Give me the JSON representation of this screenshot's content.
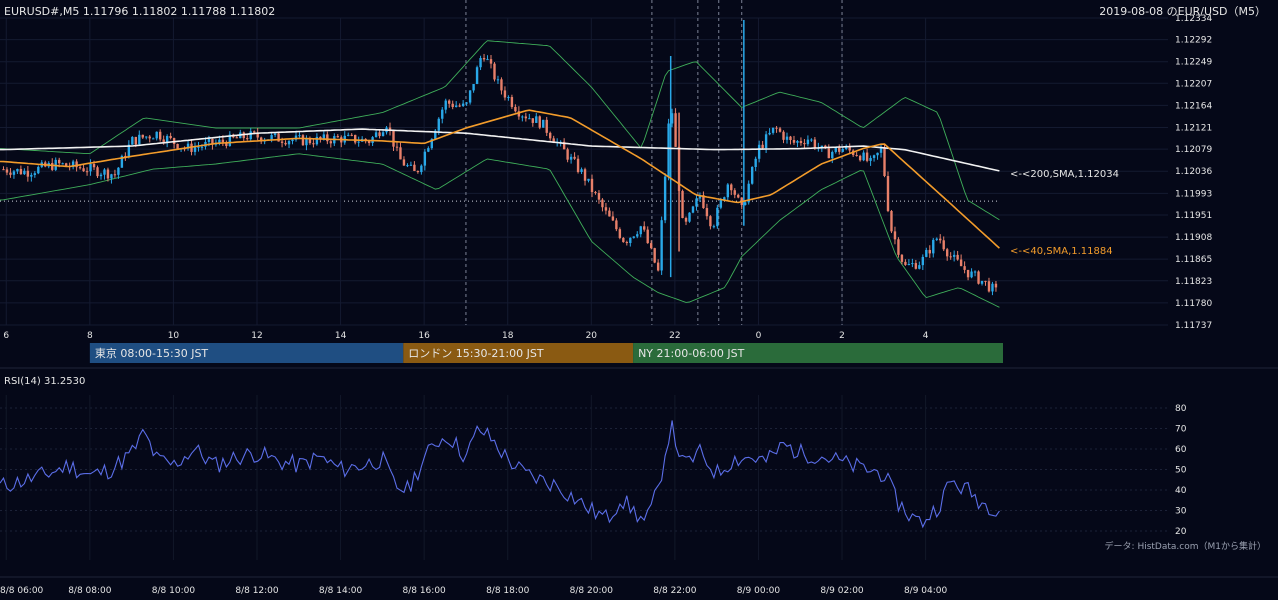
{
  "header": {
    "symbol_info": "EURUSD#,M5 1.11796 1.11802 1.11788 1.11802",
    "title": "2019-08-08 のEUR/USD（M5）"
  },
  "indicators": {
    "sma200": {
      "label": "<-<200,SMA,1.12034",
      "color": "#f2f2f2"
    },
    "sma40": {
      "label": "<-<40,SMA,1.11884",
      "color": "#f39c2b"
    },
    "bollinger": {
      "color": "#3fae5a"
    }
  },
  "sessions": [
    {
      "label": "東京 08:00-15:30 JST",
      "color": "#1f4e82"
    },
    {
      "label": "ロンドン 15:30-21:00 JST",
      "color": "#8a5a12"
    },
    {
      "label": "NY 21:00-06:00 JST",
      "color": "#2a6b3a"
    }
  ],
  "rsi": {
    "label": "RSI(14) 31.2530",
    "color": "#5b6ee8"
  },
  "footer": {
    "source": "データ: HistData.com（M1から集計）"
  },
  "colors": {
    "up": "#29a8e8",
    "down": "#e8806a",
    "background": "#050818"
  },
  "chart_data": [
    {
      "type": "candlestick",
      "title": "2019-08-08 のEUR/USD（M5）",
      "ylim": [
        1.11737,
        1.12334
      ],
      "y_ticks": [
        "1.12334",
        "1.12292",
        "1.12249",
        "1.12207",
        "1.12164",
        "1.12121",
        "1.12079",
        "1.12036",
        "1.11993",
        "1.11951",
        "1.11908",
        "1.11865",
        "1.11823",
        "1.11780",
        "1.11737"
      ],
      "x_ticks": [
        "6",
        "8",
        "10",
        "12",
        "14",
        "16",
        "18",
        "20",
        "22",
        "0",
        "2",
        "4"
      ],
      "x_tick_hours": [
        6,
        8,
        10,
        12,
        14,
        16,
        18,
        20,
        22,
        24,
        26,
        28
      ],
      "x_range_hours": [
        5.85,
        29.9
      ],
      "price_reference": 1.11978,
      "event_lines_hours": [
        17.0,
        21.45,
        22.55,
        23.05,
        23.6,
        26.0
      ],
      "price_anchors": [
        [
          5.9,
          1.1204
        ],
        [
          6.5,
          1.12035
        ],
        [
          7.2,
          1.1205
        ],
        [
          8.0,
          1.1204
        ],
        [
          8.6,
          1.1203
        ],
        [
          9.0,
          1.12095
        ],
        [
          9.6,
          1.1211
        ],
        [
          10.3,
          1.1208
        ],
        [
          11.0,
          1.1209
        ],
        [
          11.8,
          1.12105
        ],
        [
          12.5,
          1.121
        ],
        [
          13.2,
          1.12095
        ],
        [
          14.0,
          1.121
        ],
        [
          14.7,
          1.12095
        ],
        [
          15.1,
          1.1213
        ],
        [
          15.4,
          1.1206
        ],
        [
          15.8,
          1.1203
        ],
        [
          16.2,
          1.1211
        ],
        [
          16.5,
          1.1217
        ],
        [
          17.0,
          1.1216
        ],
        [
          17.4,
          1.1227
        ],
        [
          17.8,
          1.122
        ],
        [
          18.3,
          1.1215
        ],
        [
          18.8,
          1.1213
        ],
        [
          19.3,
          1.1208
        ],
        [
          19.8,
          1.1203
        ],
        [
          20.3,
          1.1196
        ],
        [
          20.8,
          1.119
        ],
        [
          21.2,
          1.1193
        ],
        [
          21.6,
          1.1184
        ],
        [
          21.9,
          1.1218
        ],
        [
          22.2,
          1.1192
        ],
        [
          22.6,
          1.1199
        ],
        [
          22.9,
          1.1193
        ],
        [
          23.3,
          1.1202
        ],
        [
          23.6,
          1.1196
        ],
        [
          24.0,
          1.1208
        ],
        [
          24.4,
          1.1212
        ],
        [
          24.8,
          1.1209
        ],
        [
          25.2,
          1.121
        ],
        [
          25.6,
          1.1207
        ],
        [
          26.0,
          1.1208
        ],
        [
          26.4,
          1.1207
        ],
        [
          26.7,
          1.1205
        ],
        [
          26.95,
          1.1208
        ],
        [
          27.15,
          1.1193
        ],
        [
          27.5,
          1.1185
        ],
        [
          27.9,
          1.1186
        ],
        [
          28.3,
          1.1191
        ],
        [
          28.6,
          1.1187
        ],
        [
          29.0,
          1.1184
        ],
        [
          29.4,
          1.1182
        ],
        [
          29.7,
          1.118
        ]
      ],
      "sma200_anchors": [
        [
          5.9,
          1.12078
        ],
        [
          9,
          1.12085
        ],
        [
          12,
          1.1211
        ],
        [
          14.5,
          1.12118
        ],
        [
          17,
          1.1211
        ],
        [
          20,
          1.12085
        ],
        [
          23,
          1.12078
        ],
        [
          25,
          1.1208
        ],
        [
          26.5,
          1.12085
        ],
        [
          27.5,
          1.12078
        ],
        [
          29.8,
          1.12036
        ]
      ],
      "sma40_anchors": [
        [
          5.9,
          1.12055
        ],
        [
          7.5,
          1.12045
        ],
        [
          9,
          1.12065
        ],
        [
          11,
          1.1209
        ],
        [
          13,
          1.121
        ],
        [
          15,
          1.12095
        ],
        [
          16,
          1.1209
        ],
        [
          17,
          1.1212
        ],
        [
          18.5,
          1.12155
        ],
        [
          19.5,
          1.1214
        ],
        [
          21.2,
          1.1206
        ],
        [
          22.5,
          1.1199
        ],
        [
          23.5,
          1.11975
        ],
        [
          24.3,
          1.1199
        ],
        [
          25.5,
          1.1205
        ],
        [
          26.5,
          1.1208
        ],
        [
          27,
          1.1209
        ],
        [
          28.5,
          1.1198
        ],
        [
          29.8,
          1.11884
        ]
      ],
      "bb_upper_anchors": [
        [
          5.9,
          1.1208
        ],
        [
          8,
          1.1207
        ],
        [
          9.3,
          1.1214
        ],
        [
          11,
          1.1212
        ],
        [
          13,
          1.1212
        ],
        [
          15,
          1.1215
        ],
        [
          16.5,
          1.122
        ],
        [
          17.5,
          1.1229
        ],
        [
          19,
          1.1228
        ],
        [
          20,
          1.122
        ],
        [
          21.2,
          1.1208
        ],
        [
          21.8,
          1.1223
        ],
        [
          22.5,
          1.1225
        ],
        [
          23.6,
          1.1216
        ],
        [
          24.5,
          1.1219
        ],
        [
          25.5,
          1.1217
        ],
        [
          26.5,
          1.1212
        ],
        [
          27.5,
          1.1218
        ],
        [
          28.3,
          1.1215
        ],
        [
          29.0,
          1.1198
        ],
        [
          29.8,
          1.1194
        ]
      ],
      "bb_lower_anchors": [
        [
          5.9,
          1.1198
        ],
        [
          8,
          1.1201
        ],
        [
          9.5,
          1.1204
        ],
        [
          11,
          1.1205
        ],
        [
          13,
          1.1207
        ],
        [
          15,
          1.1205
        ],
        [
          16.3,
          1.12
        ],
        [
          17.5,
          1.1206
        ],
        [
          19,
          1.1204
        ],
        [
          20,
          1.119
        ],
        [
          21,
          1.1183
        ],
        [
          21.6,
          1.118
        ],
        [
          22.3,
          1.1178
        ],
        [
          23.2,
          1.1181
        ],
        [
          23.6,
          1.1187
        ],
        [
          24.5,
          1.1194
        ],
        [
          25.5,
          1.12
        ],
        [
          26.5,
          1.1204
        ],
        [
          27.3,
          1.1187
        ],
        [
          28,
          1.1179
        ],
        [
          28.8,
          1.1181
        ],
        [
          29.8,
          1.1177
        ]
      ]
    },
    {
      "type": "line",
      "name": "RSI(14)",
      "ylim": [
        15,
        85
      ],
      "y_ticks": [
        80,
        70,
        60,
        50,
        40,
        30,
        20
      ],
      "x_tick_labels": [
        "8/8 06:00",
        "8/8 08:00",
        "8/8 10:00",
        "8/8 12:00",
        "8/8 14:00",
        "8/8 16:00",
        "8/8 18:00",
        "8/8 20:00",
        "8/8 22:00",
        "8/9 00:00",
        "8/9 02:00",
        "8/9 04:00"
      ],
      "rsi_anchors": [
        [
          5.9,
          42
        ],
        [
          6.5,
          45
        ],
        [
          7.0,
          48
        ],
        [
          7.5,
          52
        ],
        [
          8.0,
          47
        ],
        [
          8.5,
          50
        ],
        [
          9.0,
          58
        ],
        [
          9.3,
          68
        ],
        [
          9.6,
          55
        ],
        [
          10.0,
          52
        ],
        [
          10.5,
          60
        ],
        [
          11.0,
          52
        ],
        [
          11.5,
          56
        ],
        [
          12.0,
          58
        ],
        [
          12.5,
          54
        ],
        [
          13.0,
          52
        ],
        [
          13.5,
          56
        ],
        [
          14.0,
          50
        ],
        [
          14.5,
          52
        ],
        [
          15.0,
          55
        ],
        [
          15.3,
          42
        ],
        [
          15.6,
          40
        ],
        [
          16.0,
          55
        ],
        [
          16.3,
          64
        ],
        [
          16.6,
          66
        ],
        [
          17.0,
          56
        ],
        [
          17.3,
          70
        ],
        [
          17.6,
          65
        ],
        [
          18.0,
          55
        ],
        [
          18.4,
          48
        ],
        [
          18.8,
          45
        ],
        [
          19.2,
          42
        ],
        [
          19.6,
          36
        ],
        [
          20.0,
          30
        ],
        [
          20.4,
          26
        ],
        [
          20.7,
          36
        ],
        [
          21.0,
          30
        ],
        [
          21.3,
          24
        ],
        [
          21.6,
          40
        ],
        [
          21.9,
          72
        ],
        [
          22.2,
          52
        ],
        [
          22.6,
          58
        ],
        [
          23.0,
          48
        ],
        [
          23.4,
          55
        ],
        [
          23.8,
          56
        ],
        [
          24.2,
          54
        ],
        [
          24.6,
          62
        ],
        [
          25.0,
          58
        ],
        [
          25.4,
          57
        ],
        [
          25.8,
          55
        ],
        [
          26.2,
          52
        ],
        [
          26.6,
          50
        ],
        [
          27.0,
          48
        ],
        [
          27.3,
          35
        ],
        [
          27.6,
          28
        ],
        [
          27.9,
          24
        ],
        [
          28.3,
          32
        ],
        [
          28.6,
          44
        ],
        [
          29.0,
          40
        ],
        [
          29.4,
          33
        ],
        [
          29.8,
          31
        ]
      ]
    }
  ]
}
